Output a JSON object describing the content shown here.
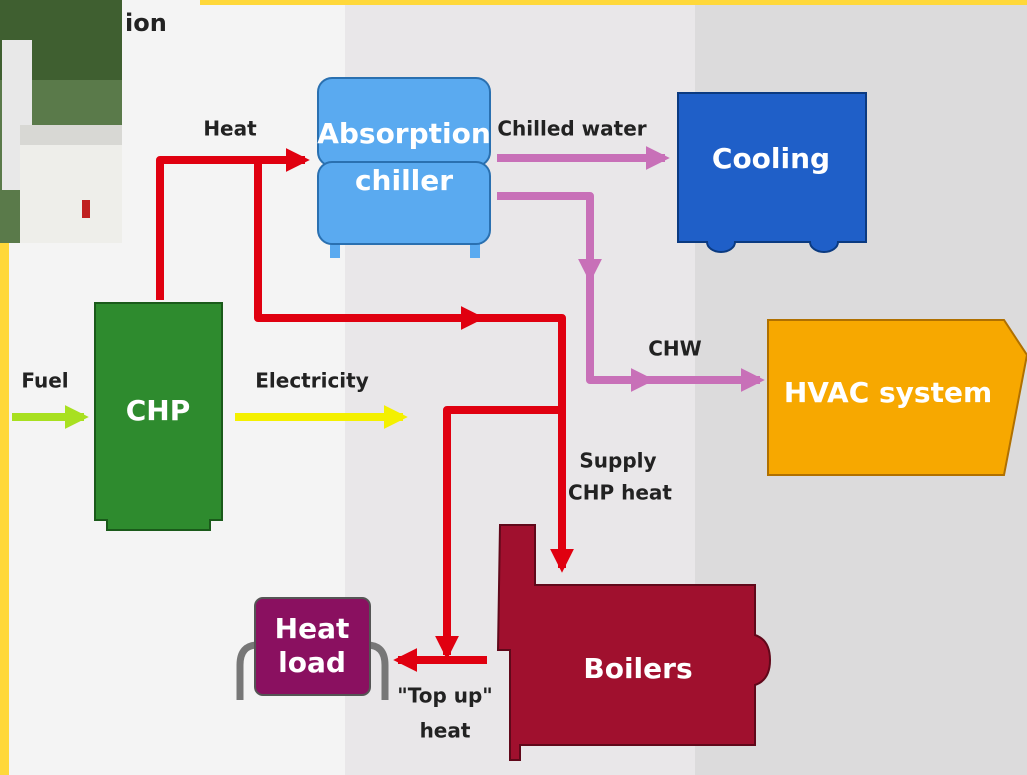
{
  "title_fragment": "ion",
  "nodes": [
    {
      "label": [
        "Absorption",
        "chiller"
      ]
    },
    {
      "label": [
        "Cooling"
      ]
    },
    {
      "label": [
        "CHP"
      ]
    },
    {
      "label": [
        "HVAC system"
      ]
    },
    {
      "label": [
        "Heat",
        "load"
      ]
    },
    {
      "label": [
        "Boilers"
      ]
    }
  ],
  "flows": [
    {
      "label": [
        "Heat"
      ]
    },
    {
      "label": [
        "Chilled water"
      ]
    },
    {
      "label": [
        "Fuel"
      ]
    },
    {
      "label": [
        "Electricity"
      ]
    },
    {
      "label": [
        "CHW"
      ]
    },
    {
      "label": [
        "Supply",
        "CHP heat"
      ]
    },
    {
      "label": [
        "\"Top up\"",
        "heat"
      ]
    }
  ]
}
